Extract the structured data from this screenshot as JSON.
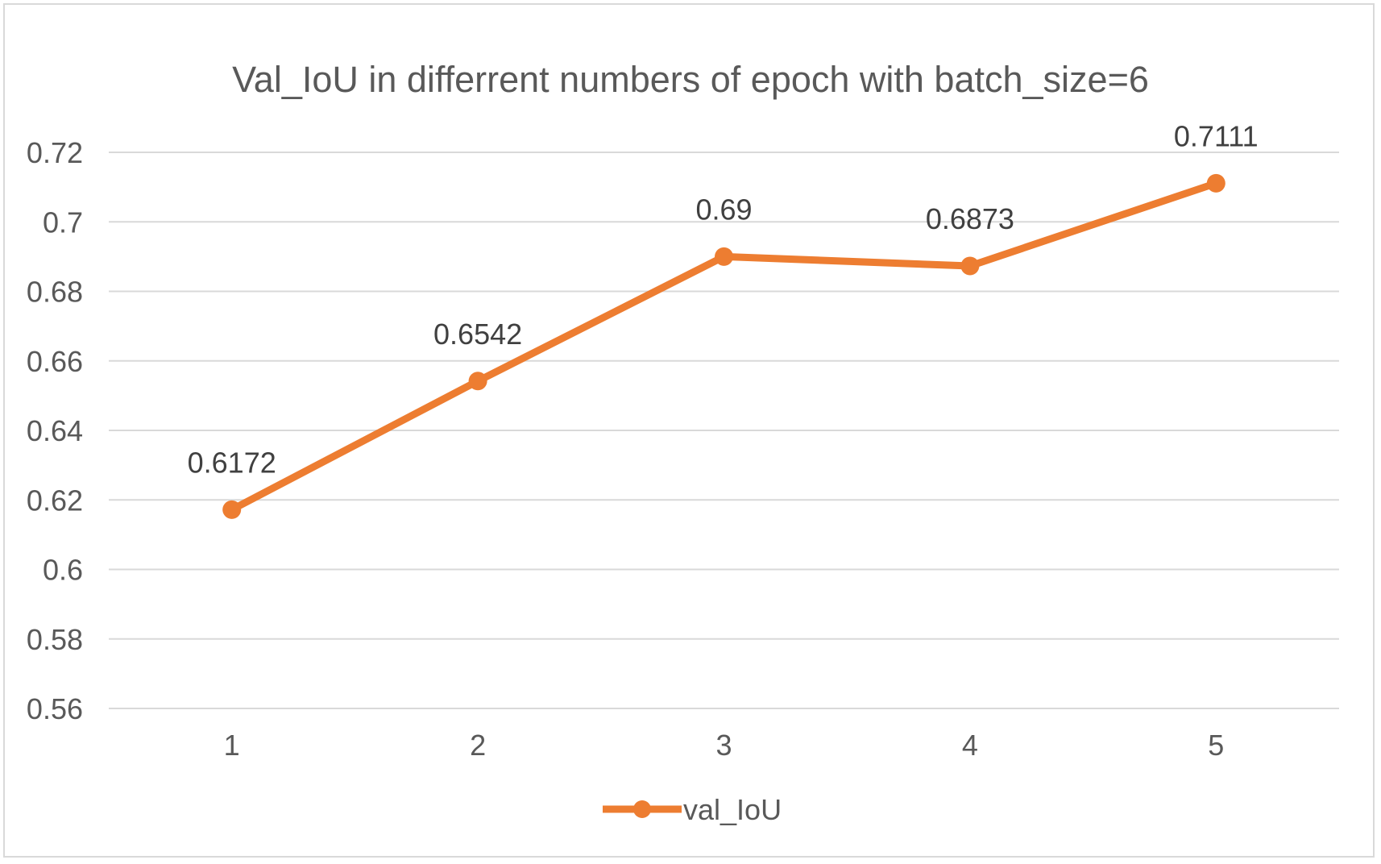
{
  "chart_data": {
    "type": "line",
    "title": "Val_IoU in differrent numbers of epoch with  batch_size=6",
    "xlabel": "",
    "ylabel": "",
    "categories": [
      "1",
      "2",
      "3",
      "4",
      "5"
    ],
    "series": [
      {
        "name": "val_IoU",
        "values": [
          0.6172,
          0.6542,
          0.69,
          0.6873,
          0.7111
        ],
        "color": "#ed7d31",
        "marker": "circle"
      }
    ],
    "data_labels": [
      "0.6172",
      "0.6542",
      "0.69",
      "0.6873",
      "0.7111"
    ],
    "ylim": [
      0.56,
      0.72
    ],
    "y_ticks": [
      "0.72",
      "0.7",
      "0.68",
      "0.66",
      "0.64",
      "0.62",
      "0.6",
      "0.58",
      "0.56"
    ],
    "grid": "horizontal",
    "legend": "bottom-center",
    "colors": {
      "gridline": "#d9d9d9",
      "axis_text": "#595959",
      "label_text": "#404040"
    }
  }
}
